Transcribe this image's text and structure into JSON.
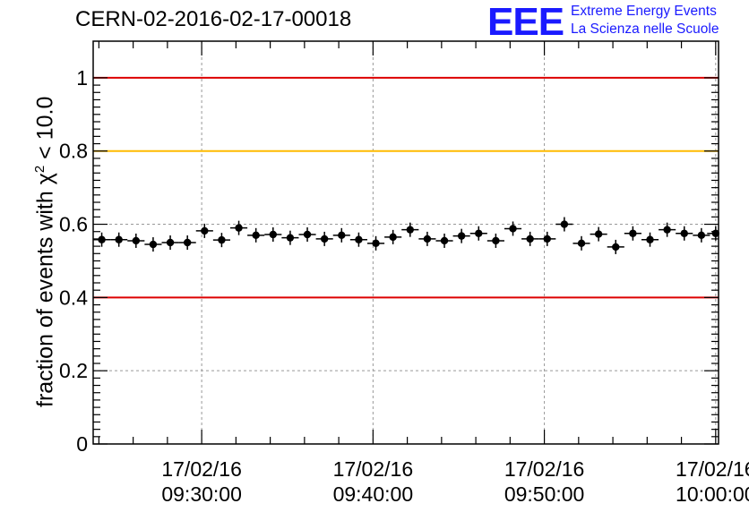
{
  "chart_data": {
    "type": "scatter",
    "title": "CERN-02-2016-02-17-00018",
    "ylabel": "fraction of events with χ² < 10.0",
    "ylabel_parts": {
      "prefix": "fraction of events with χ",
      "sup": "2",
      "suffix": " < 10.0"
    },
    "ylim": [
      0,
      1.1
    ],
    "yticks": [
      0,
      0.2,
      0.4,
      0.6,
      0.8,
      1
    ],
    "ytick_labels": [
      "0",
      "0.2",
      "0.4",
      "0.6",
      "0.8",
      "1"
    ],
    "xlim": [
      "09:23:40",
      "10:00:10"
    ],
    "xticks": [
      "09:30:00",
      "09:40:00",
      "09:50:00",
      "10:00:00"
    ],
    "xtick_labels": [
      {
        "date": "17/02/16",
        "time": "09:30:00"
      },
      {
        "date": "17/02/16",
        "time": "09:40:00"
      },
      {
        "date": "17/02/16",
        "time": "09:50:00"
      },
      {
        "date": "17/02/16",
        "time": "10:00:00"
      }
    ],
    "x_bin_width_minutes": 1,
    "grid": true,
    "reference_lines": [
      {
        "y": 1.0,
        "color": "#dd0000"
      },
      {
        "y": 0.8,
        "color": "#ffbb00"
      },
      {
        "y": 0.4,
        "color": "#dd0000"
      }
    ],
    "points": [
      {
        "x": "09:24:10",
        "y": 0.558
      },
      {
        "x": "09:25:10",
        "y": 0.558
      },
      {
        "x": "09:26:10",
        "y": 0.555
      },
      {
        "x": "09:27:10",
        "y": 0.545
      },
      {
        "x": "09:28:10",
        "y": 0.55
      },
      {
        "x": "09:29:10",
        "y": 0.55
      },
      {
        "x": "09:30:10",
        "y": 0.582
      },
      {
        "x": "09:31:10",
        "y": 0.557
      },
      {
        "x": "09:32:10",
        "y": 0.59
      },
      {
        "x": "09:33:10",
        "y": 0.57
      },
      {
        "x": "09:34:10",
        "y": 0.572
      },
      {
        "x": "09:35:10",
        "y": 0.563
      },
      {
        "x": "09:36:10",
        "y": 0.572
      },
      {
        "x": "09:37:10",
        "y": 0.56
      },
      {
        "x": "09:38:10",
        "y": 0.57
      },
      {
        "x": "09:39:10",
        "y": 0.558
      },
      {
        "x": "09:40:10",
        "y": 0.548
      },
      {
        "x": "09:41:10",
        "y": 0.565
      },
      {
        "x": "09:42:10",
        "y": 0.585
      },
      {
        "x": "09:43:10",
        "y": 0.56
      },
      {
        "x": "09:44:10",
        "y": 0.555
      },
      {
        "x": "09:45:10",
        "y": 0.568
      },
      {
        "x": "09:46:10",
        "y": 0.575
      },
      {
        "x": "09:47:10",
        "y": 0.555
      },
      {
        "x": "09:48:10",
        "y": 0.588
      },
      {
        "x": "09:49:10",
        "y": 0.56
      },
      {
        "x": "09:50:10",
        "y": 0.56
      },
      {
        "x": "09:51:10",
        "y": 0.6
      },
      {
        "x": "09:52:10",
        "y": 0.548
      },
      {
        "x": "09:53:10",
        "y": 0.573
      },
      {
        "x": "09:54:10",
        "y": 0.538
      },
      {
        "x": "09:55:10",
        "y": 0.575
      },
      {
        "x": "09:56:10",
        "y": 0.558
      },
      {
        "x": "09:57:10",
        "y": 0.585
      },
      {
        "x": "09:58:10",
        "y": 0.575
      },
      {
        "x": "09:59:10",
        "y": 0.57
      },
      {
        "x": "10:00:00",
        "y": 0.575
      }
    ]
  },
  "logo": {
    "mark": "EEE",
    "line1": "Extreme Energy Events",
    "line2": "La Scienza nelle Scuole"
  }
}
